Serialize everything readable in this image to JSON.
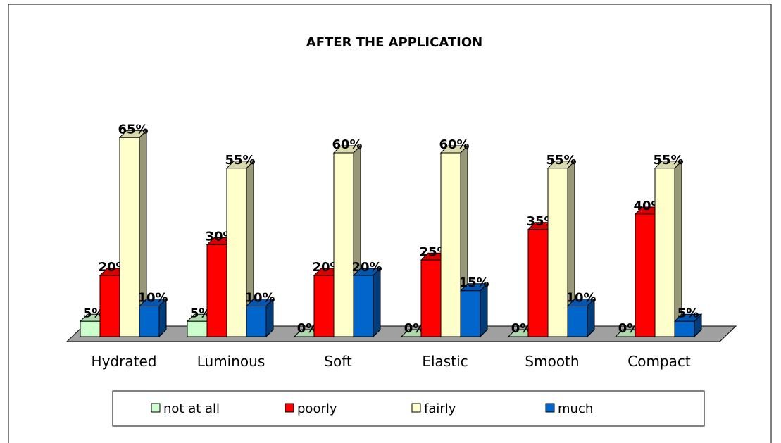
{
  "chart_data": {
    "type": "bar3d",
    "title": "AFTER THE APPLICATION",
    "categories": [
      "Hydrated",
      "Luminous",
      "Soft",
      "Elastic",
      "Smooth",
      "Compact"
    ],
    "series": [
      {
        "name": "not at all",
        "color": "#ccffcc",
        "values": [
          5,
          5,
          0,
          0,
          0,
          0
        ],
        "value_labels": [
          "5%",
          "5%",
          "0%",
          "0%",
          "0%",
          "0%"
        ]
      },
      {
        "name": "poorly",
        "color": "#ff0000",
        "values": [
          20,
          30,
          20,
          25,
          35,
          40
        ],
        "value_labels": [
          "20%",
          "30%",
          "20%",
          "25%",
          "35%",
          "40%"
        ]
      },
      {
        "name": "fairly",
        "color": "#ffffcc",
        "values": [
          65,
          55,
          60,
          60,
          55,
          55
        ],
        "value_labels": [
          "65%",
          "55%",
          "60%",
          "60%",
          "55%",
          "55%"
        ]
      },
      {
        "name": "much",
        "color": "#0066cc",
        "values": [
          10,
          10,
          20,
          15,
          10,
          5
        ],
        "value_labels": [
          "10%",
          "10%",
          "20%",
          "15%",
          "10%",
          "5%"
        ]
      }
    ],
    "legend": "bottom"
  }
}
